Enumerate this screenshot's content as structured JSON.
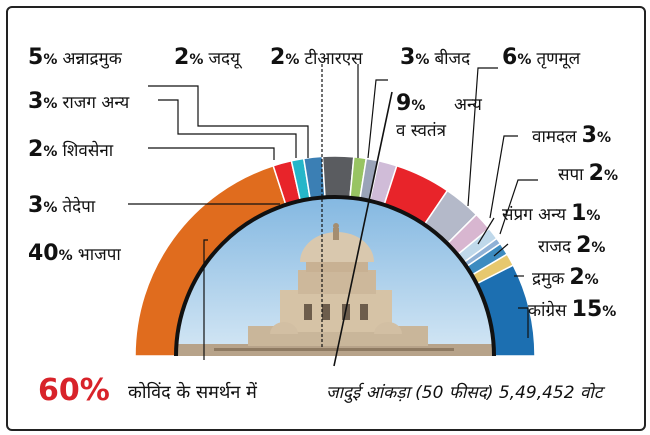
{
  "chart_data": {
    "type": "pie",
    "style": "semicircle",
    "unit": "%",
    "slices": [
      {
        "label": "भाजपा",
        "value": 40,
        "color": "#e06c1e"
      },
      {
        "label": "तेदेपा",
        "value": 3,
        "color": "#e8242a"
      },
      {
        "label": "शिवसेना",
        "value": 2,
        "color": "#26b6c9"
      },
      {
        "label": "राजग अन्य",
        "value": 3,
        "color": "#3b7fb4"
      },
      {
        "label": "अन्नाद्रमुक",
        "value": 5,
        "color": "#5a5c60"
      },
      {
        "label": "जदयू",
        "value": 2,
        "color": "#98c463"
      },
      {
        "label": "टीआरएस",
        "value": 2,
        "color": "#9aa3b8"
      },
      {
        "label": "बीजद",
        "value": 3,
        "color": "#d0bcd8"
      },
      {
        "label": "अन्य व स्वतंत्र",
        "value": 9,
        "color": "#e8242a"
      },
      {
        "label": "तृणमूल",
        "value": 6,
        "color": "#b4b9c9"
      },
      {
        "label": "वामदल",
        "value": 3,
        "color": "#d8b6d0"
      },
      {
        "label": "सपा",
        "value": 2,
        "color": "#bfd8ea"
      },
      {
        "label": "संप्रग अन्य",
        "value": 1,
        "color": "#8fb1d6"
      },
      {
        "label": "राजद",
        "value": 2,
        "color": "#3d8bc0"
      },
      {
        "label": "द्रमुक",
        "value": 2,
        "color": "#e7c86e"
      },
      {
        "label": "कांग्रेस",
        "value": 15,
        "color": "#1c6fb1"
      }
    ]
  },
  "footer": {
    "support_percent": "60%",
    "support_text": "कोविंद के समर्थन में",
    "magic_number": "जादुई आंकड़ा (50 फीसद) 5,49,452 वोट"
  },
  "colors": {
    "accent_red": "#d8232a",
    "sky_top": "#7fb5e0",
    "sky_bottom": "#cfe3f3"
  }
}
